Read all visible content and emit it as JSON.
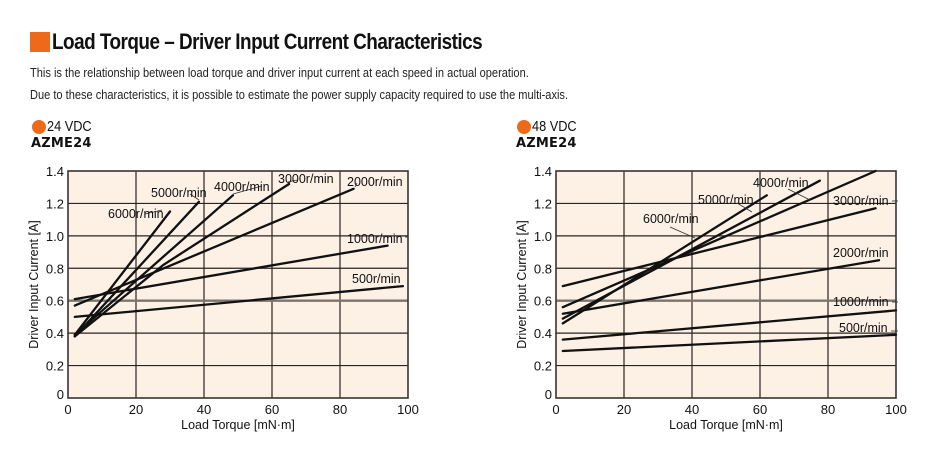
{
  "header": {
    "title": "Load Torque – Driver Input Current Characteristics",
    "description": [
      "This is the relationship between load torque and driver input current at each speed in actual operation.",
      "Due to these characteristics, it is possible to estimate the power supply capacity required to use the multi-axis."
    ],
    "accent_color": "#ee6a1a"
  },
  "panels": [
    {
      "voltage": "24 VDC",
      "model": "AZME24"
    },
    {
      "voltage": "48 VDC",
      "model": "AZME24"
    }
  ],
  "chart_data": [
    {
      "type": "line",
      "title": "24 VDC AZME24",
      "xlabel": "Load Torque [mN·m]",
      "ylabel": "Driver Input Current [A]",
      "xlim": [
        0,
        100
      ],
      "ylim": [
        0,
        1.4
      ],
      "xticks": [
        "0",
        "20",
        "40",
        "60",
        "80",
        "100"
      ],
      "yticks": [
        "0",
        "0.2",
        "0.4",
        "0.6",
        "0.8",
        "1.0",
        "1.2",
        "1.4"
      ],
      "grid": true,
      "background": "#fdf0e5",
      "series": [
        {
          "name": "6000r/min",
          "x": [
            2,
            30
          ],
          "y": [
            0.39,
            1.15
          ]
        },
        {
          "name": "5000r/min",
          "x": [
            2,
            38.5
          ],
          "y": [
            0.38,
            1.21
          ]
        },
        {
          "name": "4000r/min",
          "x": [
            2,
            48.5
          ],
          "y": [
            0.39,
            1.25
          ]
        },
        {
          "name": "3000r/min",
          "x": [
            2,
            28,
            65
          ],
          "y": [
            0.38,
            0.82,
            1.32
          ]
        },
        {
          "name": "2000r/min",
          "x": [
            2,
            84
          ],
          "y": [
            0.57,
            1.29
          ]
        },
        {
          "name": "1000r/min",
          "x": [
            2,
            94
          ],
          "y": [
            0.61,
            0.94
          ]
        },
        {
          "name": "500r/min",
          "x": [
            2,
            98.5
          ],
          "y": [
            0.5,
            0.69
          ]
        }
      ]
    },
    {
      "type": "line",
      "title": "48 VDC AZME24",
      "xlabel": "Load Torque [mN·m]",
      "ylabel": "Driver Input Current [A]",
      "xlim": [
        0,
        100
      ],
      "ylim": [
        0,
        1.4
      ],
      "xticks": [
        "0",
        "20",
        "40",
        "60",
        "80",
        "100"
      ],
      "yticks": [
        "0",
        "0.2",
        "0.4",
        "0.6",
        "0.8",
        "1.0",
        "1.2",
        "1.4"
      ],
      "grid": true,
      "background": "#fdf0e5",
      "series": [
        {
          "name": "6000r/min",
          "x": [
            2,
            62
          ],
          "y": [
            0.46,
            1.25
          ]
        },
        {
          "name": "5000r/min",
          "x": [
            2,
            77.6
          ],
          "y": [
            0.49,
            1.34
          ]
        },
        {
          "name": "4000r/min",
          "x": [
            2,
            94
          ],
          "y": [
            0.56,
            1.4
          ]
        },
        {
          "name": "3000r/min",
          "x": [
            2,
            94
          ],
          "y": [
            0.69,
            1.17
          ]
        },
        {
          "name": "2000r/min",
          "x": [
            2,
            95
          ],
          "y": [
            0.52,
            0.85
          ]
        },
        {
          "name": "1000r/min",
          "x": [
            2,
            100
          ],
          "y": [
            0.36,
            0.54
          ]
        },
        {
          "name": "500r/min",
          "x": [
            2,
            100
          ],
          "y": [
            0.29,
            0.39
          ]
        }
      ]
    }
  ]
}
